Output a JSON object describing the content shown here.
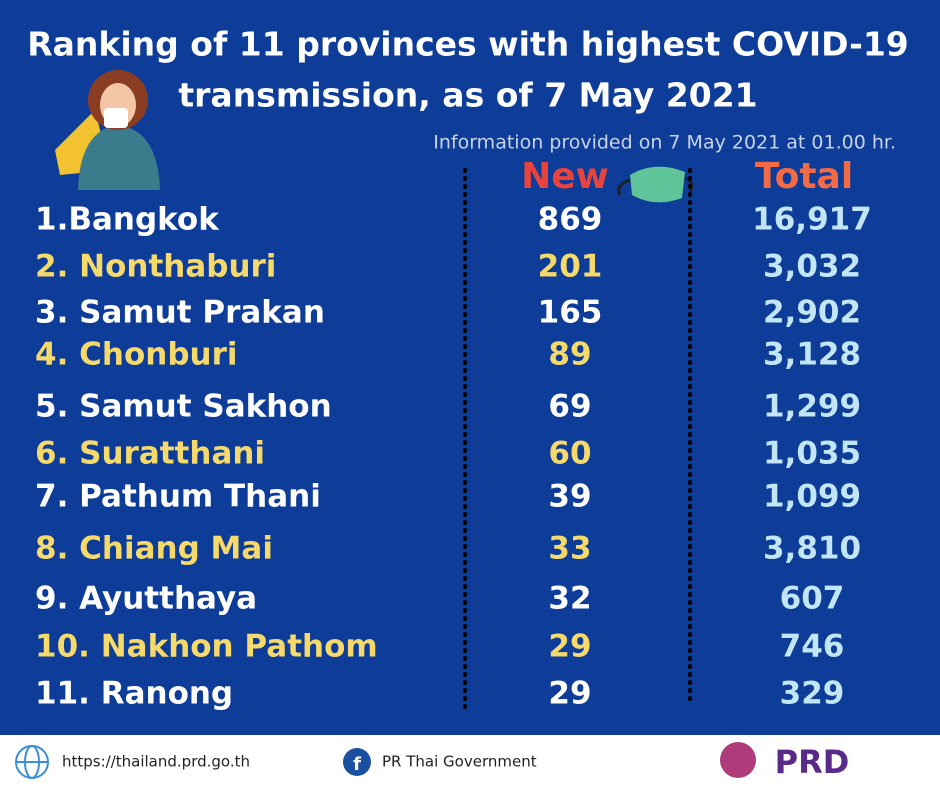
{
  "header": {
    "title_lines": [
      "Ranking of 11 provinces with highest COVID-19",
      "transmission, as of 7 May 2021"
    ],
    "subtitle": "Information provided on 7 May 2021 at 01.00 hr."
  },
  "table": {
    "columns": [
      "New",
      "Total"
    ],
    "rows": [
      [
        "1.Bangkok",
        "869",
        "16,917"
      ],
      [
        "2. Nonthaburi",
        "201",
        "3,032"
      ],
      [
        "3. Samut Prakan",
        "165",
        "2,902"
      ],
      [
        "4. Chonburi",
        "89",
        "3,128"
      ],
      [
        "5. Samut Sakhon",
        "69",
        "1,299"
      ],
      [
        "6. Suratthani",
        "60",
        "1,035"
      ],
      [
        "7. Pathum Thani",
        "39",
        "1,099"
      ],
      [
        "8. Chiang Mai",
        "33",
        "3,810"
      ],
      [
        "9. Ayutthaya",
        "32",
        "607"
      ],
      [
        "10. Nakhon Pathom",
        "29",
        "746"
      ],
      [
        "11. Ranong",
        "29",
        "329"
      ]
    ]
  },
  "footer": {
    "website": "https://thailand.prd.go.th",
    "facebook": "PR Thai Government",
    "logo": "PRD"
  }
}
